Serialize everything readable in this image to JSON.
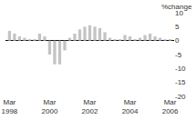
{
  "chart_data": {
    "type": "bar",
    "y_label": "%change",
    "categories": [
      "Mar 1998",
      null,
      null,
      null,
      null,
      null,
      null,
      null,
      "Mar 2000",
      null,
      null,
      null,
      null,
      null,
      null,
      null,
      "Mar 2002",
      null,
      null,
      null,
      null,
      null,
      null,
      null,
      "Mar 2004",
      null,
      null,
      null,
      null,
      null,
      null,
      null,
      "Mar 2006"
    ],
    "values": [
      3.5,
      2.5,
      1.5,
      1,
      0.5,
      0.5,
      2.5,
      1.5,
      -5,
      -8.5,
      -8.5,
      -3.5,
      1,
      2.5,
      4,
      5,
      5.5,
      5,
      4.5,
      3,
      1,
      0.5,
      0.5,
      2,
      1.5,
      0.5,
      1,
      2,
      2.5,
      1.5,
      1,
      0.5,
      0.5
    ],
    "color": "#c4c4c4",
    "ylim": [
      -20,
      10
    ],
    "yticks": [
      -20,
      -15,
      -10,
      -5,
      0,
      5,
      10
    ],
    "grid": false
  }
}
